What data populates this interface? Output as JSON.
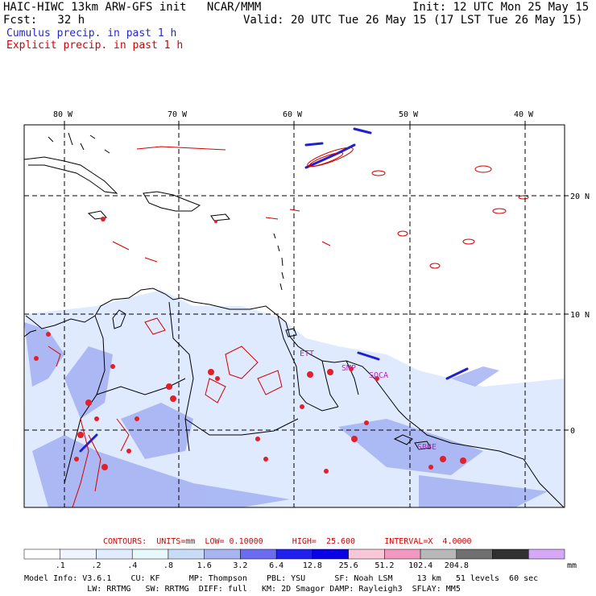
{
  "header": {
    "line1_left": "HAIC-HIWC 13km ARW-GFS init   NCAR/MMM",
    "line1_right": "Init: 12 UTC Mon 25 May 15",
    "line2_left": "Fcst:   32 h",
    "line2_right": "Valid: 20 UTC Tue 26 May 15 (17 LST Tue 26 May 15)",
    "legend_cumulus": "Cumulus precip. in past 1 h",
    "legend_explicit": "Explicit precip. in past 1 h",
    "cumulus_color": "#2828c8",
    "explicit_color": "#d40000"
  },
  "map": {
    "lon_labels": [
      "80 W",
      "70 W",
      "60 W",
      "50 W",
      "40 W"
    ],
    "lat_labels": [
      "20 N",
      "10 N",
      "0"
    ],
    "places": [
      "ETT",
      "SMP",
      "SOCA",
      "SBBE"
    ],
    "place_color": "#c020c0"
  },
  "contours_info": {
    "text": "CONTOURS:  UNITS=mm  LOW= 0.10000      HIGH=  25.600      INTERVAL=X  4.0000"
  },
  "colorbar": {
    "labels": [
      ".1",
      ".2",
      ".4",
      ".8",
      "1.6",
      "3.2",
      "6.4",
      "12.8",
      "25.6",
      "51.2",
      "102.4",
      "204.8"
    ],
    "unit": "mm",
    "colors": [
      "#ffffff",
      "#f0f4ff",
      "#e2ecff",
      "#e6f8fa",
      "#c8dcf8",
      "#a8b4f0",
      "#6c6cf0",
      "#2020ee",
      "#0a00e6",
      "#f8c8d8",
      "#f098c0",
      "#b8b8b8",
      "#707070",
      "#303030",
      "#d8a8f8"
    ]
  },
  "model_info": {
    "line1": "Model Info: V3.6.1    CU: KF      MP: Thompson    PBL: YSU      SF: Noah LSM     13 km   51 levels  60 sec",
    "line2": "             LW: RRTMG   SW: RRTMG  DIFF: full   KM: 2D Smagor DAMP: Rayleigh3  SFLAY: MM5"
  }
}
